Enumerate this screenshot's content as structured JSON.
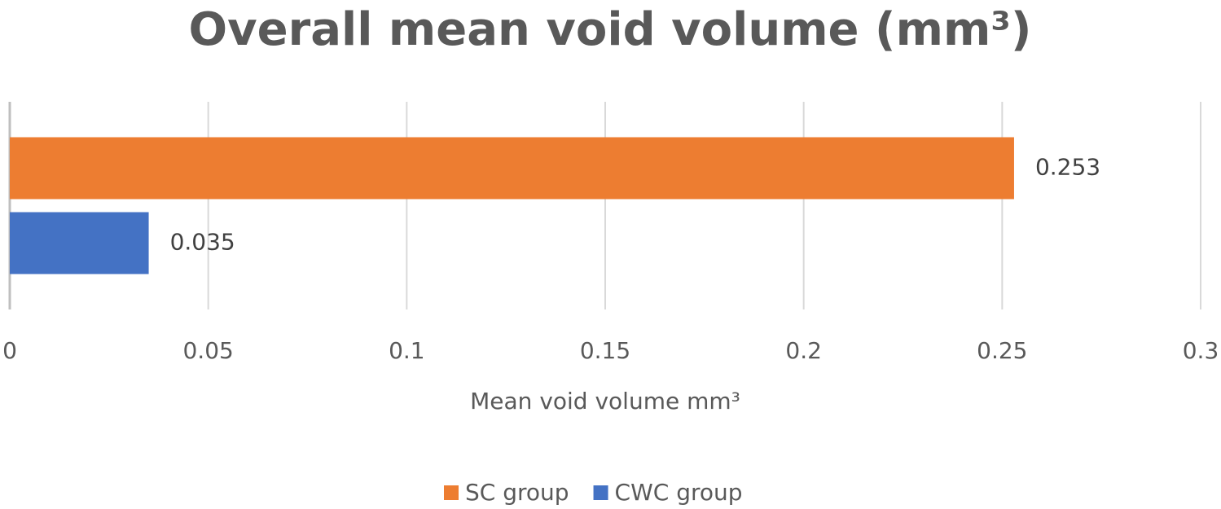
{
  "chart_data": {
    "type": "bar",
    "orientation": "horizontal",
    "title": "Overall mean void volume (mm³)",
    "x_label": "Mean void volume mm³",
    "categories": [
      null
    ],
    "series": [
      {
        "name": "SC group",
        "color": "#ed7d31",
        "values": [
          0.253
        ]
      },
      {
        "name": "CWC group",
        "color": "#4472c4",
        "values": [
          0.035
        ]
      }
    ],
    "xlim": [
      0,
      0.3
    ],
    "xticks": [
      0,
      0.05,
      0.1,
      0.15,
      0.2,
      0.25,
      0.3
    ],
    "grid": true,
    "legend": "bottom"
  }
}
